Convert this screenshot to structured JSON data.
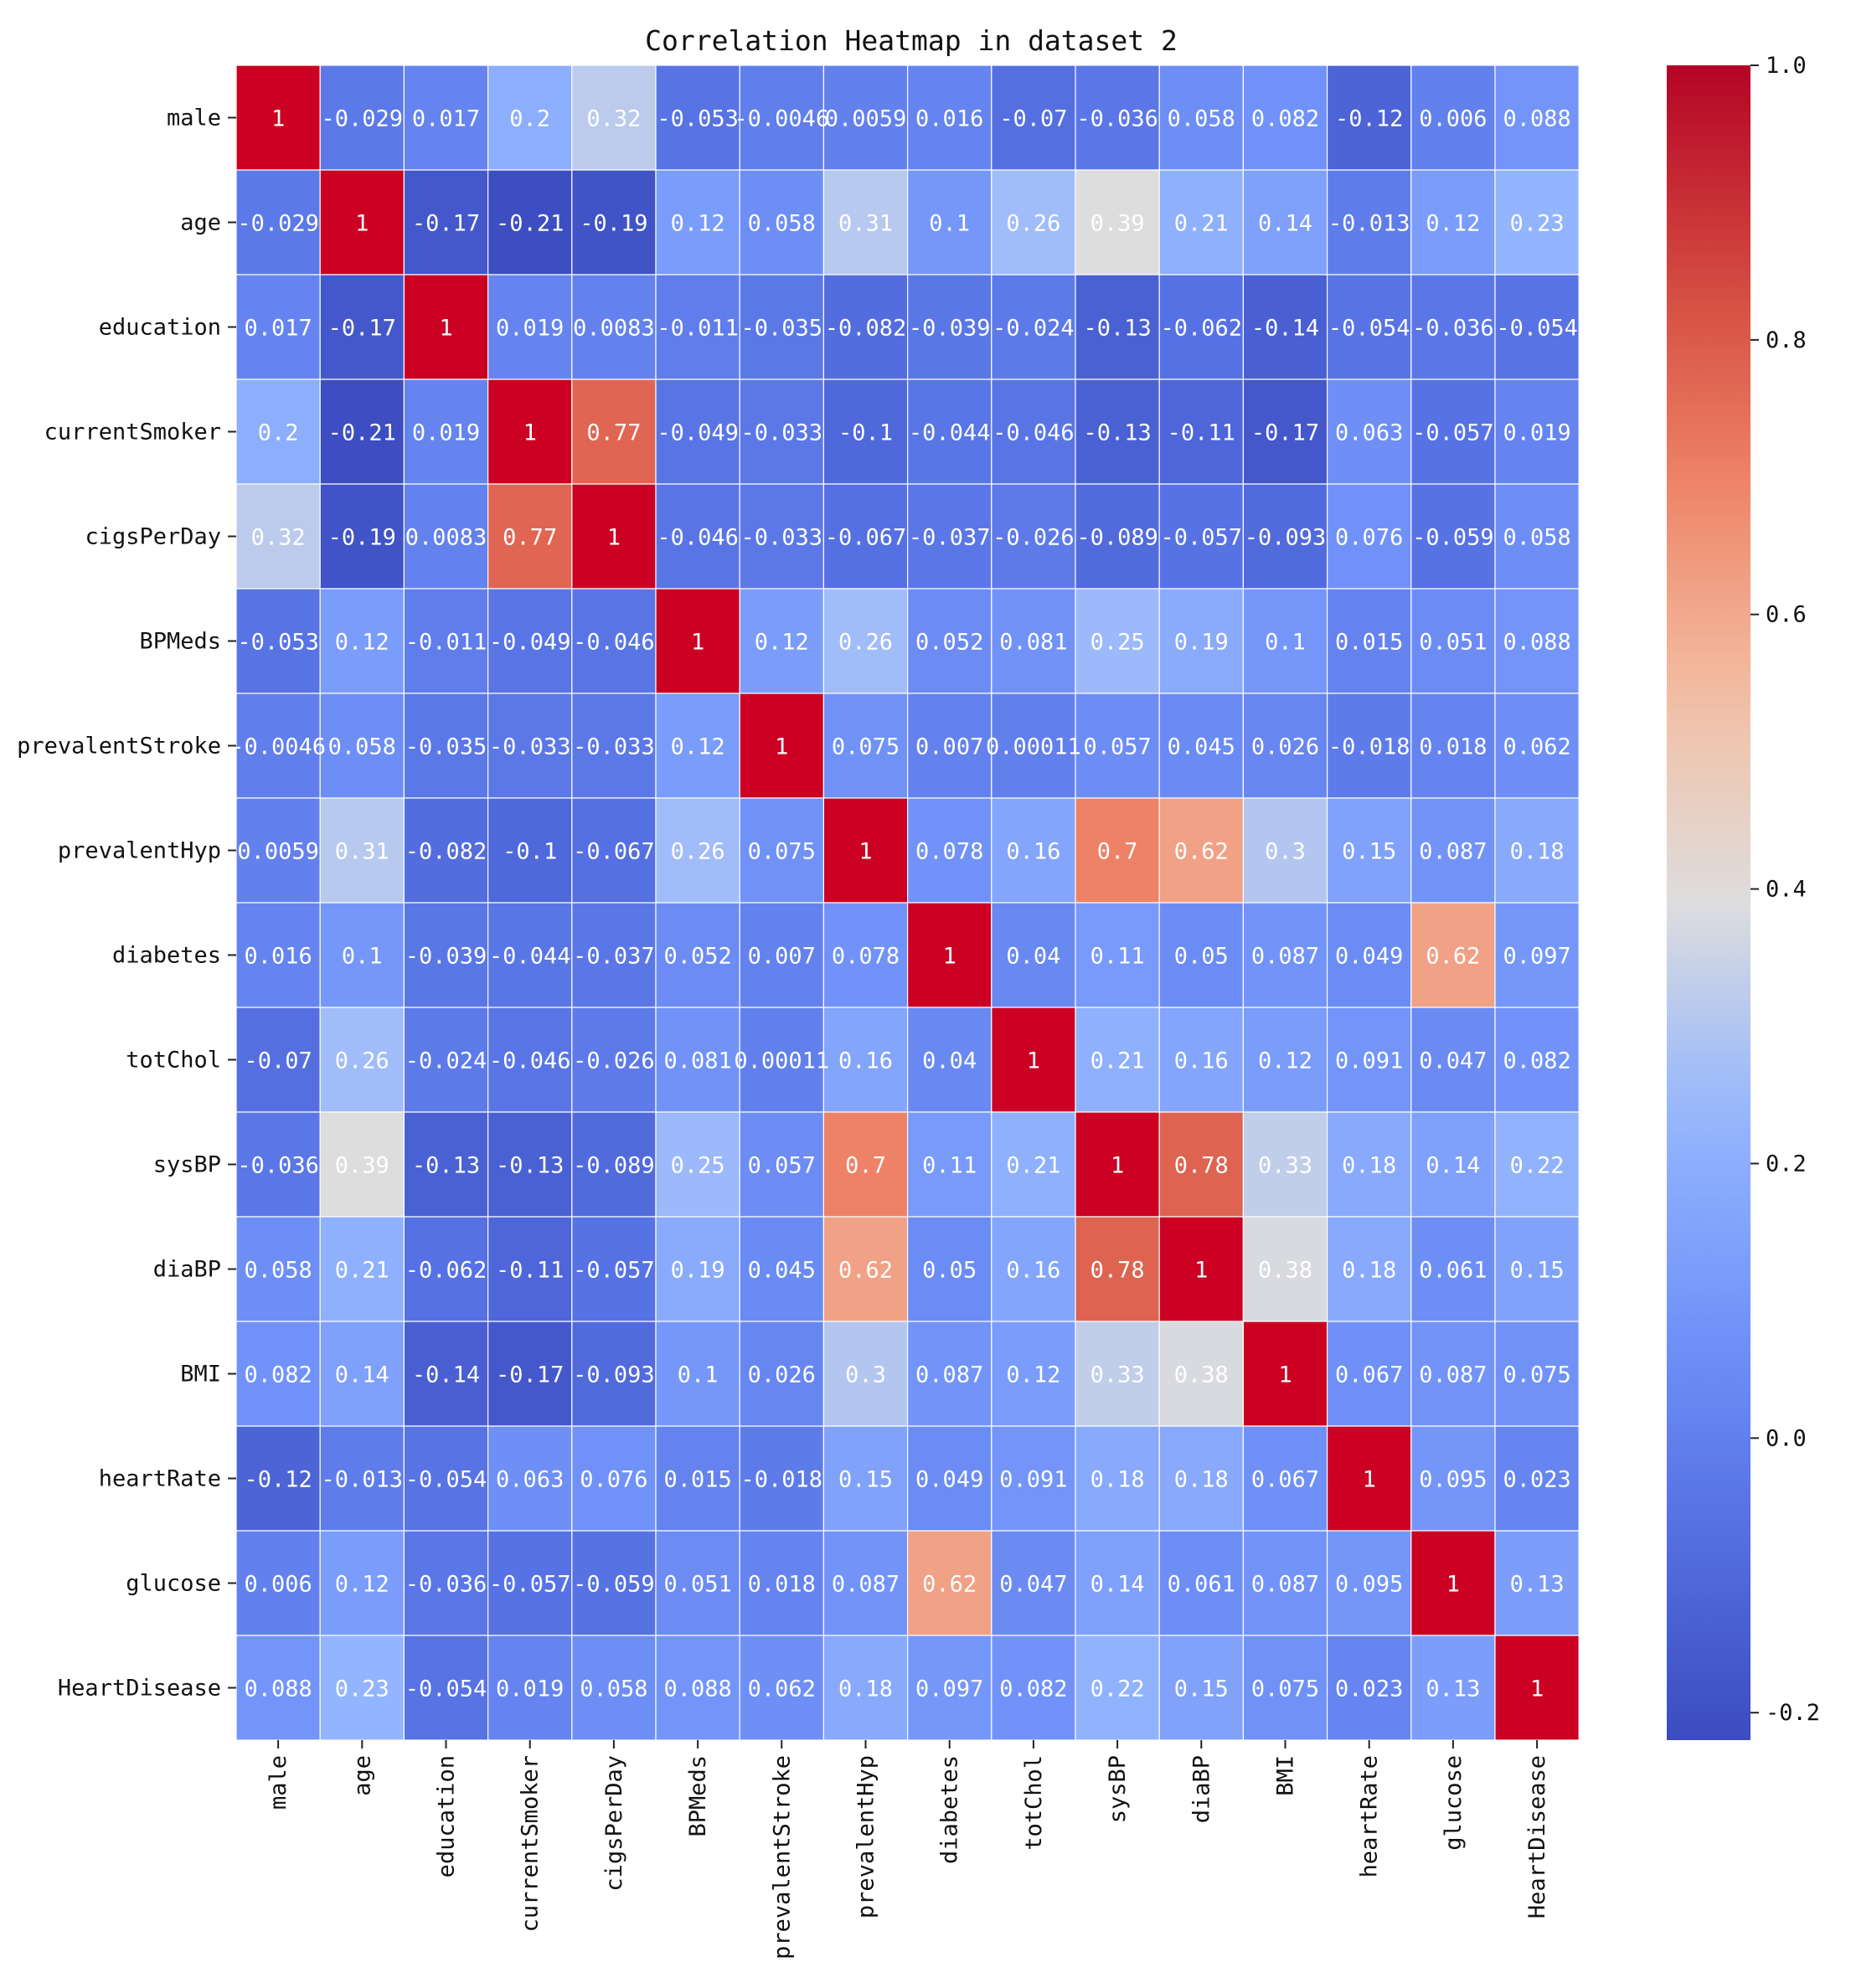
{
  "chart_data": {
    "type": "heatmap",
    "title": "Correlation Heatmap in dataset 2",
    "labels": [
      "male",
      "age",
      "education",
      "currentSmoker",
      "cigsPerDay",
      "BPMeds",
      "prevalentStroke",
      "prevalentHyp",
      "diabetes",
      "totChol",
      "sysBP",
      "diaBP",
      "BMI",
      "heartRate",
      "glucose",
      "HeartDisease"
    ],
    "values": [
      [
        1,
        -0.029,
        0.017,
        0.2,
        0.32,
        -0.053,
        -0.0046,
        0.0059,
        0.016,
        -0.07,
        -0.036,
        0.058,
        0.082,
        -0.12,
        0.006,
        0.088
      ],
      [
        -0.029,
        1,
        -0.17,
        -0.21,
        -0.19,
        0.12,
        0.058,
        0.31,
        0.1,
        0.26,
        0.39,
        0.21,
        0.14,
        -0.013,
        0.12,
        0.23
      ],
      [
        0.017,
        -0.17,
        1,
        0.019,
        0.0083,
        -0.011,
        -0.035,
        -0.082,
        -0.039,
        -0.024,
        -0.13,
        -0.062,
        -0.14,
        -0.054,
        -0.036,
        -0.054
      ],
      [
        0.2,
        -0.21,
        0.019,
        1,
        0.77,
        -0.049,
        -0.033,
        -0.1,
        -0.044,
        -0.046,
        -0.13,
        -0.11,
        -0.17,
        0.063,
        -0.057,
        0.019
      ],
      [
        0.32,
        -0.19,
        0.0083,
        0.77,
        1,
        -0.046,
        -0.033,
        -0.067,
        -0.037,
        -0.026,
        -0.089,
        -0.057,
        -0.093,
        0.076,
        -0.059,
        0.058
      ],
      [
        -0.053,
        0.12,
        -0.011,
        -0.049,
        -0.046,
        1,
        0.12,
        0.26,
        0.052,
        0.081,
        0.25,
        0.19,
        0.1,
        0.015,
        0.051,
        0.088
      ],
      [
        -0.0046,
        0.058,
        -0.035,
        -0.033,
        -0.033,
        0.12,
        1,
        0.075,
        0.007,
        0.00011,
        0.057,
        0.045,
        0.026,
        -0.018,
        0.018,
        0.062
      ],
      [
        0.0059,
        0.31,
        -0.082,
        -0.1,
        -0.067,
        0.26,
        0.075,
        1,
        0.078,
        0.16,
        0.7,
        0.62,
        0.3,
        0.15,
        0.087,
        0.18
      ],
      [
        0.016,
        0.1,
        -0.039,
        -0.044,
        -0.037,
        0.052,
        0.007,
        0.078,
        1,
        0.04,
        0.11,
        0.05,
        0.087,
        0.049,
        0.62,
        0.097
      ],
      [
        -0.07,
        0.26,
        -0.024,
        -0.046,
        -0.026,
        0.081,
        0.00011,
        0.16,
        0.04,
        1,
        0.21,
        0.16,
        0.12,
        0.091,
        0.047,
        0.082
      ],
      [
        -0.036,
        0.39,
        -0.13,
        -0.13,
        -0.089,
        0.25,
        0.057,
        0.7,
        0.11,
        0.21,
        1,
        0.78,
        0.33,
        0.18,
        0.14,
        0.22
      ],
      [
        0.058,
        0.21,
        -0.062,
        -0.11,
        -0.057,
        0.19,
        0.045,
        0.62,
        0.05,
        0.16,
        0.78,
        1,
        0.38,
        0.18,
        0.061,
        0.15
      ],
      [
        0.082,
        0.14,
        -0.14,
        -0.17,
        -0.093,
        0.1,
        0.026,
        0.3,
        0.087,
        0.12,
        0.33,
        0.38,
        1,
        0.067,
        0.087,
        0.075
      ],
      [
        -0.12,
        -0.013,
        -0.054,
        0.063,
        0.076,
        0.015,
        -0.018,
        0.15,
        0.049,
        0.091,
        0.18,
        0.18,
        0.067,
        1,
        0.095,
        0.023
      ],
      [
        0.006,
        0.12,
        -0.036,
        -0.057,
        -0.059,
        0.051,
        0.018,
        0.087,
        0.62,
        0.047,
        0.14,
        0.061,
        0.087,
        0.095,
        1,
        0.13
      ],
      [
        0.088,
        0.23,
        -0.054,
        0.019,
        0.058,
        0.088,
        0.062,
        0.18,
        0.097,
        0.082,
        0.22,
        0.15,
        0.075,
        0.023,
        0.13,
        1
      ]
    ],
    "value_labels": [
      [
        "1",
        "-0.029",
        "0.017",
        "0.2",
        "0.32",
        "-0.053",
        "-0.0046",
        "0.0059",
        "0.016",
        "-0.07",
        "-0.036",
        "0.058",
        "0.082",
        "-0.12",
        "0.006",
        "0.088"
      ],
      [
        "-0.029",
        "1",
        "-0.17",
        "-0.21",
        "-0.19",
        "0.12",
        "0.058",
        "0.31",
        "0.1",
        "0.26",
        "0.39",
        "0.21",
        "0.14",
        "-0.013",
        "0.12",
        "0.23"
      ],
      [
        "0.017",
        "-0.17",
        "1",
        "0.019",
        "0.0083",
        "-0.011",
        "-0.035",
        "-0.082",
        "-0.039",
        "-0.024",
        "-0.13",
        "-0.062",
        "-0.14",
        "-0.054",
        "-0.036",
        "-0.054"
      ],
      [
        "0.2",
        "-0.21",
        "0.019",
        "1",
        "0.77",
        "-0.049",
        "-0.033",
        "-0.1",
        "-0.044",
        "-0.046",
        "-0.13",
        "-0.11",
        "-0.17",
        "0.063",
        "-0.057",
        "0.019"
      ],
      [
        "0.32",
        "-0.19",
        "0.0083",
        "0.77",
        "1",
        "-0.046",
        "-0.033",
        "-0.067",
        "-0.037",
        "-0.026",
        "-0.089",
        "-0.057",
        "-0.093",
        "0.076",
        "-0.059",
        "0.058"
      ],
      [
        "-0.053",
        "0.12",
        "-0.011",
        "-0.049",
        "-0.046",
        "1",
        "0.12",
        "0.26",
        "0.052",
        "0.081",
        "0.25",
        "0.19",
        "0.1",
        "0.015",
        "0.051",
        "0.088"
      ],
      [
        "-0.0046",
        "0.058",
        "-0.035",
        "-0.033",
        "-0.033",
        "0.12",
        "1",
        "0.075",
        "0.007",
        "0.00011",
        "0.057",
        "0.045",
        "0.026",
        "-0.018",
        "0.018",
        "0.062"
      ],
      [
        "0.0059",
        "0.31",
        "-0.082",
        "-0.1",
        "-0.067",
        "0.26",
        "0.075",
        "1",
        "0.078",
        "0.16",
        "0.7",
        "0.62",
        "0.3",
        "0.15",
        "0.087",
        "0.18"
      ],
      [
        "0.016",
        "0.1",
        "-0.039",
        "-0.044",
        "-0.037",
        "0.052",
        "0.007",
        "0.078",
        "1",
        "0.04",
        "0.11",
        "0.05",
        "0.087",
        "0.049",
        "0.62",
        "0.097"
      ],
      [
        "-0.07",
        "0.26",
        "-0.024",
        "-0.046",
        "-0.026",
        "0.081",
        "0.00011",
        "0.16",
        "0.04",
        "1",
        "0.21",
        "0.16",
        "0.12",
        "0.091",
        "0.047",
        "0.082"
      ],
      [
        "-0.036",
        "0.39",
        "-0.13",
        "-0.13",
        "-0.089",
        "0.25",
        "0.057",
        "0.7",
        "0.11",
        "0.21",
        "1",
        "0.78",
        "0.33",
        "0.18",
        "0.14",
        "0.22"
      ],
      [
        "0.058",
        "0.21",
        "-0.062",
        "-0.11",
        "-0.057",
        "0.19",
        "0.045",
        "0.62",
        "0.05",
        "0.16",
        "0.78",
        "1",
        "0.38",
        "0.18",
        "0.061",
        "0.15"
      ],
      [
        "0.082",
        "0.14",
        "-0.14",
        "-0.17",
        "-0.093",
        "0.1",
        "0.026",
        "0.3",
        "0.087",
        "0.12",
        "0.33",
        "0.38",
        "1",
        "0.067",
        "0.087",
        "0.075"
      ],
      [
        "-0.12",
        "-0.013",
        "-0.054",
        "0.063",
        "0.076",
        "0.015",
        "-0.018",
        "0.15",
        "0.049",
        "0.091",
        "0.18",
        "0.18",
        "0.067",
        "1",
        "0.095",
        "0.023"
      ],
      [
        "0.006",
        "0.12",
        "-0.036",
        "-0.057",
        "-0.059",
        "0.051",
        "0.018",
        "0.087",
        "0.62",
        "0.047",
        "0.14",
        "0.061",
        "0.087",
        "0.095",
        "1",
        "0.13"
      ],
      [
        "0.088",
        "0.23",
        "-0.054",
        "0.019",
        "0.058",
        "0.088",
        "0.062",
        "0.18",
        "0.097",
        "0.082",
        "0.22",
        "0.15",
        "0.075",
        "0.023",
        "0.13",
        "1"
      ]
    ],
    "colorbar": {
      "colormap": "coolwarm",
      "vmin": -0.22,
      "vmax": 1.0,
      "ticks": [
        1.0,
        0.8,
        0.6,
        0.4,
        0.2,
        0.0,
        -0.2
      ],
      "tick_labels": [
        "1.0",
        "0.8",
        "0.6",
        "0.4",
        "0.2",
        "0.0",
        "-0.2"
      ]
    },
    "grid": true,
    "colors": {
      "low": "#3b4cc0",
      "mid": "#dddddd",
      "high": "#b40426",
      "diagonal": "#cc0022"
    }
  }
}
